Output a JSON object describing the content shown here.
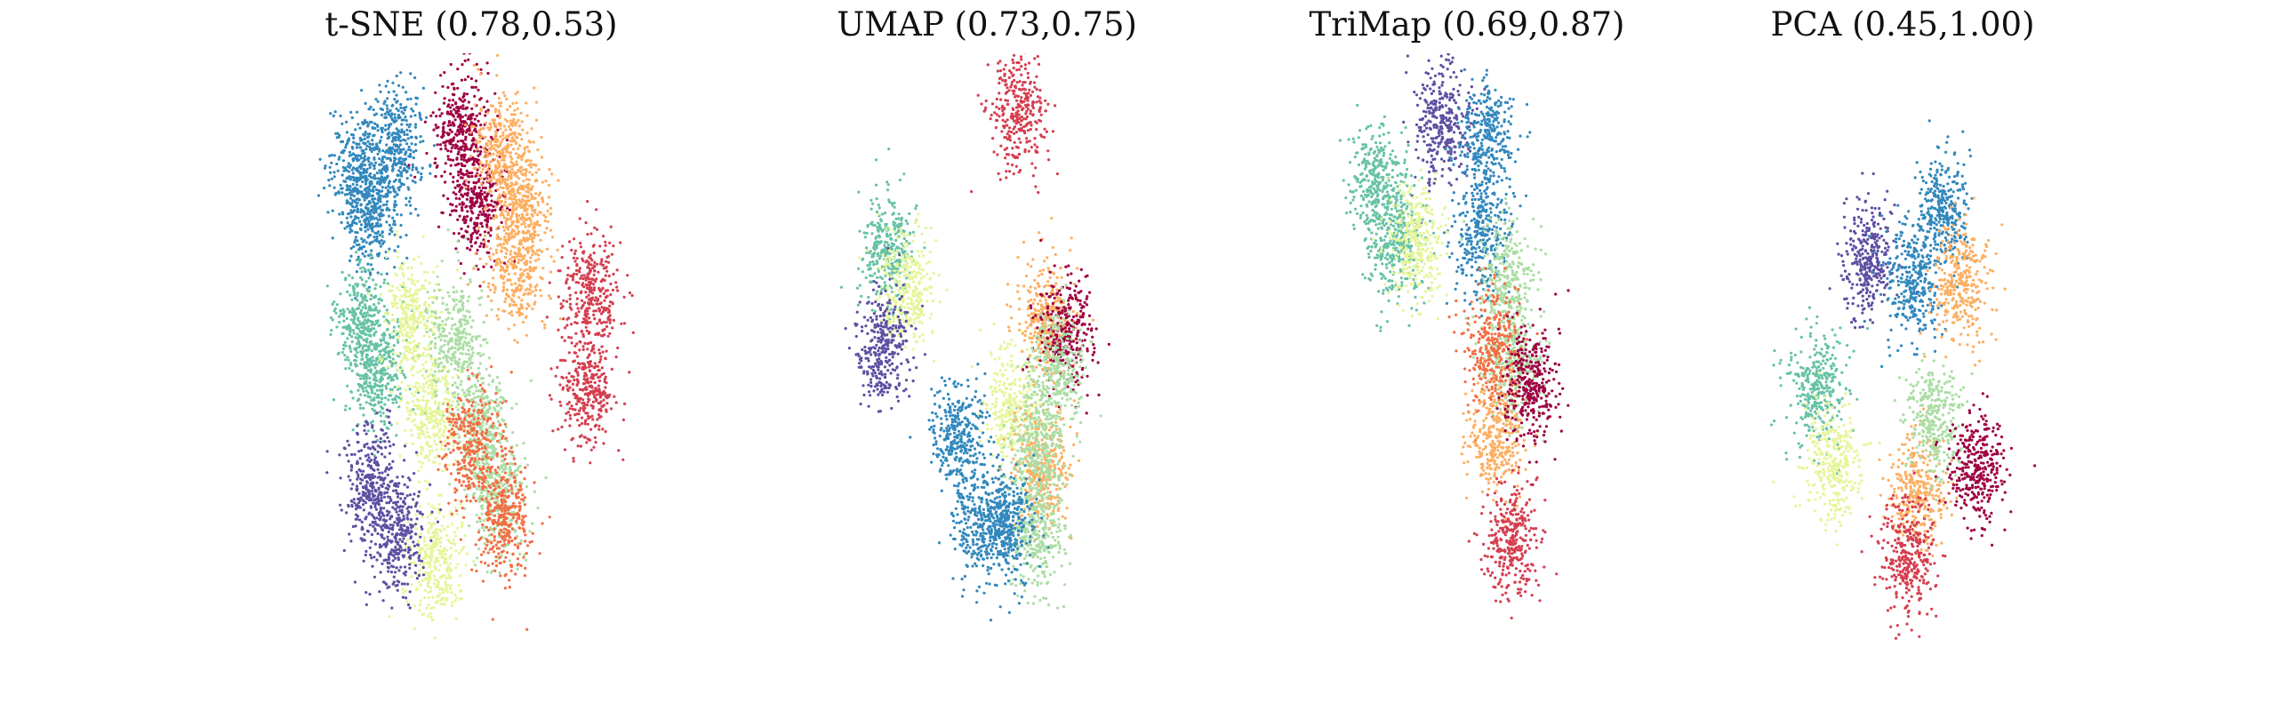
{
  "chart_data": [
    {
      "type": "scatter",
      "title": "t-SNE (0.78,0.53)",
      "xlabel": "",
      "ylabel": "",
      "grid": false,
      "axes": false,
      "series": [
        {
          "color": "#3288bd",
          "x": [
            -2.3,
            -2.0,
            -1.5
          ],
          "y": [
            2.4,
            1.9,
            2.7
          ]
        },
        {
          "color": "#9e0142",
          "x": [
            -0.2,
            0.1
          ],
          "y": [
            2.9,
            2.0
          ]
        },
        {
          "color": "#fdae61",
          "x": [
            0.6,
            1.0,
            0.9
          ],
          "y": [
            2.6,
            2.0,
            1.2
          ]
        },
        {
          "color": "#d53e4f",
          "x": [
            2.4,
            2.3
          ],
          "y": [
            0.9,
            -0.3
          ]
        },
        {
          "color": "#66c2a5",
          "x": [
            -2.2,
            -1.9
          ],
          "y": [
            0.5,
            -0.1
          ]
        },
        {
          "color": "#e6f598",
          "x": [
            -1.2,
            -0.8,
            -0.7
          ],
          "y": [
            0.6,
            -0.6,
            -2.4
          ]
        },
        {
          "color": "#abdda4",
          "x": [
            -0.3,
            0.2,
            0.5
          ],
          "y": [
            0.3,
            -0.8,
            -1.6
          ]
        },
        {
          "color": "#f46d43",
          "x": [
            0.0,
            0.7
          ],
          "y": [
            -1.0,
            -1.9
          ]
        },
        {
          "color": "#5e4fa2",
          "x": [
            -2.0,
            -1.5
          ],
          "y": [
            -1.5,
            -2.1
          ]
        }
      ]
    },
    {
      "type": "scatter",
      "title": "UMAP (0.73,0.75)",
      "xlabel": "",
      "ylabel": "",
      "grid": false,
      "axes": false,
      "series": [
        {
          "color": "#d53e4f",
          "x": [
            0.6
          ],
          "y": [
            3.1
          ]
        },
        {
          "color": "#66c2a5",
          "x": [
            -2.0
          ],
          "y": [
            1.4
          ]
        },
        {
          "color": "#e6f598",
          "x": [
            -1.6,
            0.5
          ],
          "y": [
            0.9,
            -0.5
          ]
        },
        {
          "color": "#5e4fa2",
          "x": [
            -2.1
          ],
          "y": [
            0.2
          ]
        },
        {
          "color": "#fdae61",
          "x": [
            1.2,
            1.1
          ],
          "y": [
            0.6,
            -1.3
          ]
        },
        {
          "color": "#9e0142",
          "x": [
            1.6
          ],
          "y": [
            0.4
          ]
        },
        {
          "color": "#abdda4",
          "x": [
            1.4,
            1.0,
            1.0
          ],
          "y": [
            -0.1,
            -1.0,
            -2.1
          ]
        },
        {
          "color": "#3288bd",
          "x": [
            -0.6,
            -0.1,
            0.4
          ],
          "y": [
            -0.9,
            -2.0,
            -2.0
          ]
        }
      ]
    },
    {
      "type": "scatter",
      "title": "TriMap (0.69,0.87)",
      "xlabel": "",
      "ylabel": "",
      "grid": false,
      "axes": false,
      "series": [
        {
          "color": "#5e4fa2",
          "x": [
            -0.5
          ],
          "y": [
            3.0
          ]
        },
        {
          "color": "#3288bd",
          "x": [
            0.4,
            0.3
          ],
          "y": [
            2.8,
            1.6
          ]
        },
        {
          "color": "#66c2a5",
          "x": [
            -1.8,
            -1.4
          ],
          "y": [
            2.2,
            1.5
          ]
        },
        {
          "color": "#e6f598",
          "x": [
            -1.0
          ],
          "y": [
            1.5
          ]
        },
        {
          "color": "#abdda4",
          "x": [
            0.8,
            0.9
          ],
          "y": [
            1.0,
            0.0
          ]
        },
        {
          "color": "#f46d43",
          "x": [
            0.5
          ],
          "y": [
            0.2
          ]
        },
        {
          "color": "#fdae61",
          "x": [
            0.6
          ],
          "y": [
            -0.9
          ]
        },
        {
          "color": "#9e0142",
          "x": [
            1.3
          ],
          "y": [
            -0.3
          ]
        },
        {
          "color": "#d53e4f",
          "x": [
            0.9
          ],
          "y": [
            -2.2
          ]
        }
      ]
    },
    {
      "type": "scatter",
      "title": "PCA (0.45,1.00)",
      "xlabel": "",
      "ylabel": "",
      "grid": false,
      "axes": false,
      "series": [
        {
          "color": "#5e4fa2",
          "x": [
            -0.7
          ],
          "y": [
            1.3
          ]
        },
        {
          "color": "#3288bd",
          "x": [
            0.2,
            0.8
          ],
          "y": [
            1.0,
            1.9
          ]
        },
        {
          "color": "#fdae61",
          "x": [
            1.2,
            0.3
          ],
          "y": [
            1.0,
            -1.6
          ]
        },
        {
          "color": "#abdda4",
          "x": [
            0.6
          ],
          "y": [
            -0.7
          ]
        },
        {
          "color": "#66c2a5",
          "x": [
            -1.7
          ],
          "y": [
            -0.3
          ]
        },
        {
          "color": "#e6f598",
          "x": [
            -1.4
          ],
          "y": [
            -1.2
          ]
        },
        {
          "color": "#9e0142",
          "x": [
            1.5
          ],
          "y": [
            -1.3
          ]
        },
        {
          "color": "#d53e4f",
          "x": [
            0.1
          ],
          "y": [
            -2.4
          ]
        }
      ]
    }
  ]
}
